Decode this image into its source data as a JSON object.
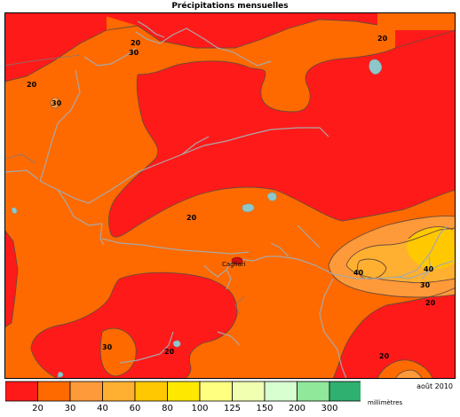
{
  "title": "Précipitations mensuelles",
  "date": "août 2010",
  "unit": "millimètres",
  "city": "Cagliari",
  "contour_labels": {
    "c1": "20",
    "c2": "30",
    "c3": "20",
    "c4": "30",
    "c5": "20",
    "c6": "20",
    "c7": "40",
    "c8": "40",
    "c9": "30",
    "c10": "20",
    "c11": "30",
    "c12": "20",
    "c13": "20"
  },
  "legend": {
    "colors": [
      "#ff1a1a",
      "#ff6a00",
      "#ff9a3a",
      "#ffb030",
      "#ffc800",
      "#ffe800",
      "#ffff80",
      "#f0ffb0",
      "#d8ffd0",
      "#90e89a",
      "#30b070"
    ],
    "ticks": [
      "20",
      "30",
      "40",
      "60",
      "80",
      "100",
      "125",
      "150",
      "200",
      "300"
    ]
  }
}
